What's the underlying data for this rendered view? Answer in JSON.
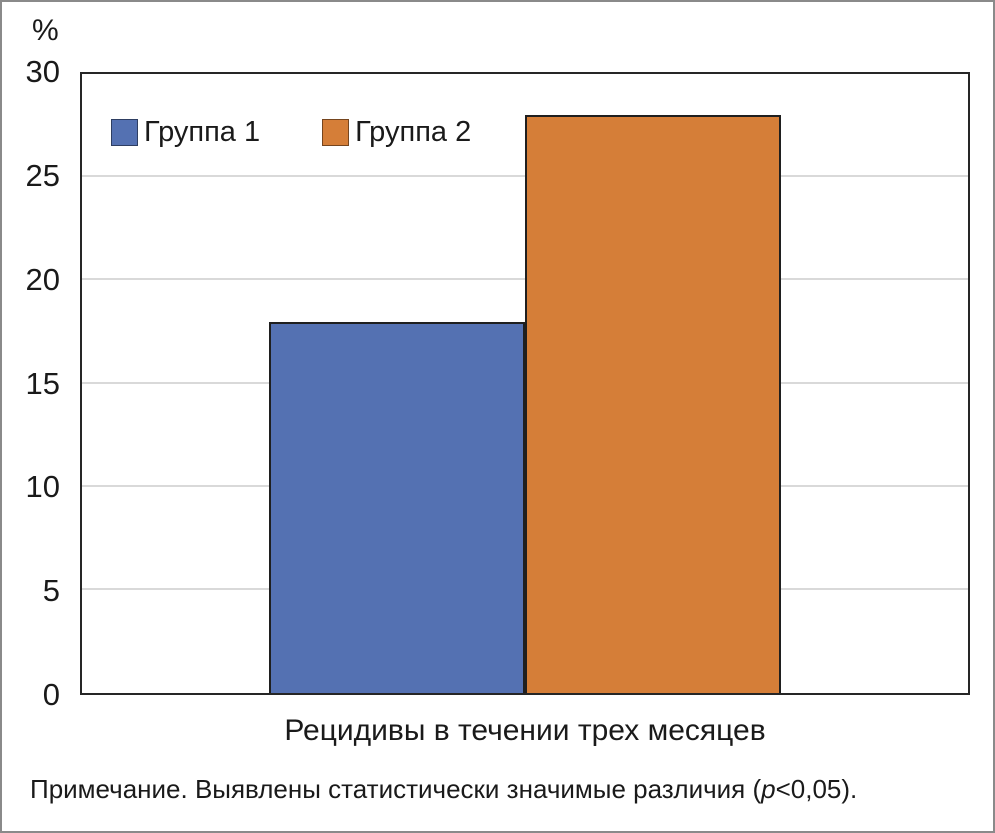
{
  "chart_data": {
    "type": "bar",
    "title": "",
    "ylabel": "%",
    "xlabel": "Рецидивы в течении трех месяцев",
    "categories": [
      "Рецидивы в течении трех месяцев"
    ],
    "series": [
      {
        "name": "Группа 1",
        "values": [
          18
        ],
        "color": "#5471B2"
      },
      {
        "name": "Группа 2",
        "values": [
          28
        ],
        "color": "#D57E38"
      }
    ],
    "ylim": [
      0,
      30
    ],
    "yticks": [
      0,
      5,
      10,
      15,
      20,
      25,
      30
    ],
    "grid": true,
    "legend_position": "top-left-inside"
  },
  "labels": {
    "y_axis_unit": "%",
    "x_axis_label": "Рецидивы в течении трех месяцев"
  },
  "note": {
    "prefix": "Примечание. Выявлены статистически значимые различия (",
    "italic": "p",
    "suffix": "<0,05)."
  },
  "colors": {
    "group1": "#5471B2",
    "group2": "#D57E38",
    "gridline": "#d9d9d9",
    "plot_border": "#262626",
    "outer_border": "#8a8a8a",
    "bar_outline": "#1f1f1f",
    "text": "#1a1a1a"
  }
}
